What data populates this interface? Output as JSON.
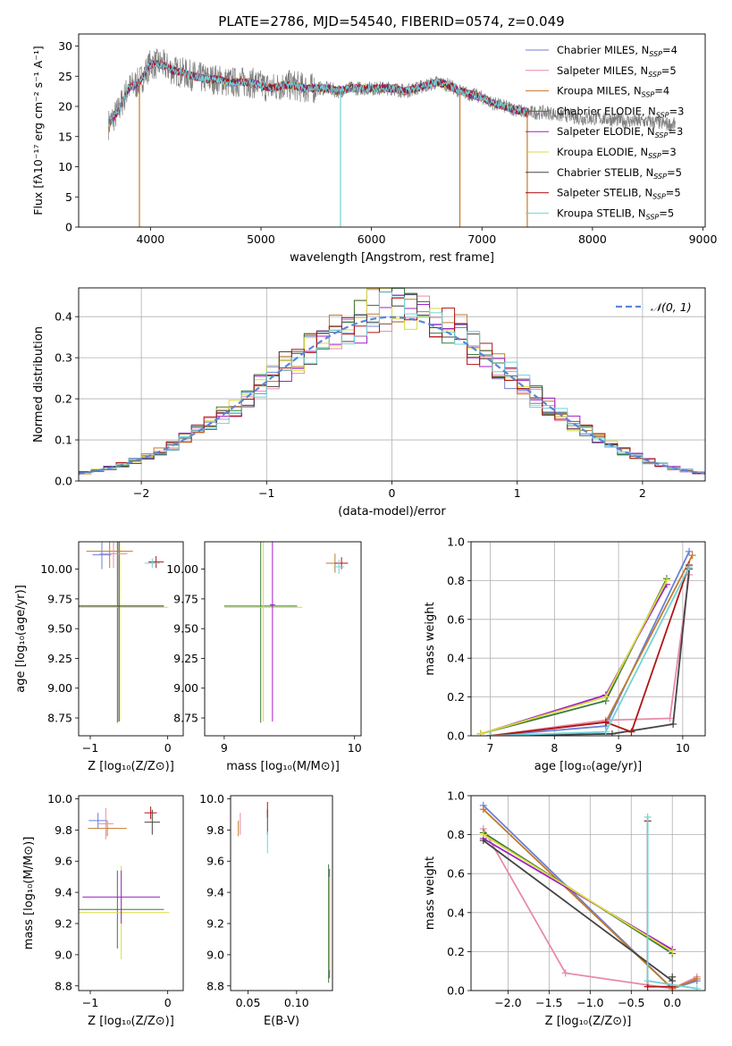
{
  "figure_title": "PLATE=2786, MJD=54540, FIBERID=0574, z=0.049",
  "colors": [
    "#6a7fd8",
    "#e88aa8",
    "#c27a2c",
    "#3d7a3d",
    "#a020c8",
    "#d9dc3c",
    "#444444",
    "#b01515",
    "#6fd3d8"
  ],
  "chart_data": [
    {
      "id": "spectrum",
      "type": "line",
      "title": "PLATE=2786, MJD=54540, FIBERID=0574, z=0.049",
      "xlabel": "wavelength [Angstrom, rest frame]",
      "ylabel": "Flux [f$_\\lambda$10$^{-17}$ erg cm$^{-2}$ s$^{-1}$ A$^{-1}$]",
      "ylabel_text": "Flux [fλ10⁻¹⁷ erg cm⁻² s⁻¹ A⁻¹]",
      "xlim": [
        3350,
        9020
      ],
      "ylim": [
        0,
        32
      ],
      "xticks": [
        "4000",
        "5000",
        "6000",
        "7000",
        "8000",
        "9000"
      ],
      "xtick_values": [
        4000,
        5000,
        6000,
        7000,
        8000,
        9000
      ],
      "yticks": [
        "0",
        "5",
        "10",
        "15",
        "20",
        "25",
        "30"
      ],
      "ytick_values": [
        0,
        5,
        10,
        15,
        20,
        25,
        30
      ],
      "data_x": [
        3620,
        3700,
        3800,
        3900,
        4000,
        4100,
        4200,
        4300,
        4400,
        4500,
        4600,
        4700,
        4800,
        4900,
        5000,
        5100,
        5200,
        5300,
        5400,
        5500,
        5600,
        5700,
        5800,
        5900,
        6000,
        6100,
        6200,
        6300,
        6400,
        6500,
        6600,
        6700,
        6800,
        6900,
        7000,
        7100,
        7200,
        7300,
        7400,
        7500,
        7600,
        7700,
        7800,
        7900,
        8000,
        8100,
        8200,
        8300,
        8400,
        8500,
        8600,
        8700,
        8750
      ],
      "data_y": [
        17,
        19,
        23,
        24,
        27,
        27,
        26,
        25.5,
        25,
        24.5,
        24.5,
        24,
        24,
        24,
        23.5,
        23,
        23.5,
        23.5,
        23,
        23,
        23,
        22.5,
        23,
        23,
        23,
        23,
        23,
        22.5,
        23,
        23.5,
        24,
        23.5,
        22.5,
        22,
        21.5,
        20.5,
        20,
        19.5,
        19,
        19,
        19,
        18.5,
        18.5,
        18,
        18,
        18,
        17.8,
        17.6,
        17.5,
        17.5,
        17.3,
        17,
        17
      ],
      "dips": [
        {
          "x": 3900,
          "y": 0,
          "series": 2
        },
        {
          "x": 5720,
          "y": 0,
          "series": 8
        },
        {
          "x": 6800,
          "y": 0,
          "series": 2
        },
        {
          "x": 7410,
          "y": 0,
          "series": 2
        }
      ],
      "legend": [
        {
          "label": "Chabrier MILES, N",
          "sub": "SSP",
          "suffix": "=4"
        },
        {
          "label": "Salpeter MILES, N",
          "sub": "SSP",
          "suffix": "=5"
        },
        {
          "label": "Kroupa MILES, N",
          "sub": "SSP",
          "suffix": "=4"
        },
        {
          "label": "Chabrier ELODIE, N",
          "sub": "SSP",
          "suffix": "=3"
        },
        {
          "label": "Salpeter ELODIE, N",
          "sub": "SSP",
          "suffix": "=3"
        },
        {
          "label": "Kroupa ELODIE, N",
          "sub": "SSP",
          "suffix": "=3"
        },
        {
          "label": "Chabrier STELIB, N",
          "sub": "SSP",
          "suffix": "=5"
        },
        {
          "label": "Salpeter STELIB, N",
          "sub": "SSP",
          "suffix": "=5"
        },
        {
          "label": "Kroupa STELIB, N",
          "sub": "SSP",
          "suffix": "=5"
        }
      ],
      "legend_placement": "upper-right"
    },
    {
      "id": "residuals",
      "type": "step-histogram",
      "xlabel": "(data-model)/error",
      "ylabel": "Normed distribution",
      "xlim": [
        -2.5,
        2.5
      ],
      "ylim": [
        0,
        0.47
      ],
      "xticks": [
        "−2",
        "−1",
        "0",
        "1",
        "2"
      ],
      "xtick_values": [
        -2,
        -1,
        0,
        1,
        2
      ],
      "yticks": [
        "0.0",
        "0.1",
        "0.2",
        "0.3",
        "0.4"
      ],
      "ytick_values": [
        0,
        0.1,
        0.2,
        0.3,
        0.4
      ],
      "grid": true,
      "bin_width": 0.1,
      "reference_curve": {
        "label": "𝒩(0, 1)",
        "style": "dashed",
        "color": "#5b86d8"
      },
      "legend_placement": "upper-right"
    },
    {
      "id": "age-vs-z",
      "type": "errorbar",
      "xlabel": "Z [log₁₀(Z/Z⊙)]",
      "ylabel": "age  [log₁₀(age/yr)]",
      "xlim": [
        -1.15,
        0.2
      ],
      "ylim": [
        8.6,
        10.23
      ],
      "xticks": [
        "−1",
        "0"
      ],
      "xtick_values": [
        -1,
        0
      ],
      "yticks": [
        "8.75",
        "9.00",
        "9.25",
        "9.50",
        "9.75",
        "10.00"
      ],
      "ytick_values": [
        8.75,
        9.0,
        9.25,
        9.5,
        9.75,
        10.0
      ],
      "points": [
        {
          "x": -0.65,
          "y": 9.69,
          "xerr": 0.6,
          "yerr": 0.98,
          "series": 3
        },
        {
          "x": -0.62,
          "y": 9.68,
          "xerr": 0.62,
          "yerr": 0.96,
          "series": 5
        },
        {
          "x": -0.63,
          "y": 9.69,
          "xerr": 0.58,
          "yerr": 0.97,
          "series": 6
        },
        {
          "x": -0.75,
          "y": 10.15,
          "xerr": 0.3,
          "yerr": 0.14,
          "series": 2
        },
        {
          "x": -0.7,
          "y": 10.13,
          "xerr": 0.18,
          "yerr": 0.12,
          "series": 1
        },
        {
          "x": -0.85,
          "y": 10.12,
          "xerr": 0.12,
          "yerr": 0.12,
          "series": 0
        },
        {
          "x": -0.15,
          "y": 10.06,
          "xerr": 0.1,
          "yerr": 0.05,
          "series": 7
        },
        {
          "x": -0.2,
          "y": 10.05,
          "xerr": 0.1,
          "yerr": 0.04,
          "series": 8
        }
      ]
    },
    {
      "id": "age-vs-mass",
      "type": "errorbar",
      "xlabel": "mass [log₁₀(M/M⊙)]",
      "ylabel": "",
      "xlim": [
        8.85,
        10.05
      ],
      "ylim": [
        8.6,
        10.23
      ],
      "xticks": [
        "9",
        "10"
      ],
      "xtick_values": [
        9,
        10
      ],
      "yticks": [
        "8.75",
        "9.00",
        "9.25",
        "9.50",
        "9.75",
        "10.00"
      ],
      "ytick_values": [
        8.75,
        9.0,
        9.25,
        9.5,
        9.75,
        10.0
      ],
      "points": [
        {
          "x": 9.28,
          "y": 9.69,
          "xerr": 0.28,
          "yerr": 0.98,
          "series": 3
        },
        {
          "x": 9.3,
          "y": 9.68,
          "xerr": 0.3,
          "yerr": 0.96,
          "series": 5
        },
        {
          "x": 9.37,
          "y": 9.7,
          "xerr": 0.02,
          "yerr": 0.98,
          "series": 4
        },
        {
          "x": 9.85,
          "y": 10.05,
          "xerr": 0.07,
          "yerr": 0.08,
          "series": 2
        },
        {
          "x": 9.9,
          "y": 10.05,
          "xerr": 0.05,
          "yerr": 0.05,
          "series": 7
        },
        {
          "x": 9.88,
          "y": 10.02,
          "xerr": 0.04,
          "yerr": 0.06,
          "series": 8
        }
      ]
    },
    {
      "id": "weight-vs-age",
      "type": "line",
      "xlabel": "age  [log₁₀(age/yr)]",
      "ylabel": "mass weight",
      "xlim": [
        6.7,
        10.35
      ],
      "ylim": [
        0,
        1.0
      ],
      "xticks": [
        "7",
        "8",
        "9",
        "10"
      ],
      "xtick_values": [
        7,
        8,
        9,
        10
      ],
      "yticks": [
        "0.0",
        "0.2",
        "0.4",
        "0.6",
        "0.8",
        "1.0"
      ],
      "ytick_values": [
        0,
        0.2,
        0.4,
        0.6,
        0.8,
        1.0
      ],
      "grid": true,
      "series": [
        {
          "series": 0,
          "x": [
            7.0,
            8.8,
            10.1
          ],
          "y": [
            0.0,
            0.05,
            0.95
          ]
        },
        {
          "series": 1,
          "x": [
            7.0,
            8.8,
            9.8,
            10.1
          ],
          "y": [
            0.0,
            0.08,
            0.09,
            0.83
          ]
        },
        {
          "series": 2,
          "x": [
            7.0,
            8.8,
            10.15
          ],
          "y": [
            0.0,
            0.07,
            0.93
          ]
        },
        {
          "series": 3,
          "x": [
            6.85,
            8.8,
            9.75
          ],
          "y": [
            0.01,
            0.18,
            0.81
          ]
        },
        {
          "series": 4,
          "x": [
            6.85,
            8.8,
            9.75
          ],
          "y": [
            0.01,
            0.21,
            0.78
          ]
        },
        {
          "series": 5,
          "x": [
            6.85,
            8.8,
            9.75
          ],
          "y": [
            0.01,
            0.2,
            0.8
          ]
        },
        {
          "series": 6,
          "x": [
            7.0,
            8.9,
            9.85,
            10.1
          ],
          "y": [
            0.0,
            0.01,
            0.06,
            0.86
          ]
        },
        {
          "series": 7,
          "x": [
            7.0,
            8.8,
            9.2,
            10.1
          ],
          "y": [
            0.0,
            0.07,
            0.02,
            0.88
          ]
        },
        {
          "series": 8,
          "x": [
            7.0,
            8.8,
            10.1
          ],
          "y": [
            0.0,
            0.02,
            0.87
          ]
        }
      ]
    },
    {
      "id": "mass-vs-z",
      "type": "errorbar",
      "xlabel": "Z [log₁₀(Z/Z⊙)]",
      "ylabel": "mass [log₁₀(M/M⊙)]",
      "xlim": [
        -1.15,
        0.2
      ],
      "ylim": [
        8.77,
        10.02
      ],
      "xticks": [
        "−1",
        "0"
      ],
      "xtick_values": [
        -1,
        0
      ],
      "yticks": [
        "8.8",
        "9.0",
        "9.2",
        "9.4",
        "9.6",
        "9.8",
        "10.0"
      ],
      "ytick_values": [
        8.8,
        9.0,
        9.2,
        9.4,
        9.6,
        9.8,
        10.0
      ],
      "points": [
        {
          "x": -0.65,
          "y": 9.29,
          "xerr": 0.6,
          "yerr": 0.25,
          "series": 3
        },
        {
          "x": -0.6,
          "y": 9.27,
          "xerr": 0.62,
          "yerr": 0.3,
          "series": 5
        },
        {
          "x": -0.6,
          "y": 9.37,
          "xerr": 0.5,
          "yerr": 0.17,
          "series": 4
        },
        {
          "x": -0.78,
          "y": 9.81,
          "xerr": 0.25,
          "yerr": 0.05,
          "series": 2
        },
        {
          "x": -0.9,
          "y": 9.86,
          "xerr": 0.12,
          "yerr": 0.05,
          "series": 0
        },
        {
          "x": -0.8,
          "y": 9.84,
          "xerr": 0.1,
          "yerr": 0.1,
          "series": 1
        },
        {
          "x": -0.2,
          "y": 9.85,
          "xerr": 0.1,
          "yerr": 0.08,
          "series": 6
        },
        {
          "x": -0.22,
          "y": 9.91,
          "xerr": 0.08,
          "yerr": 0.04,
          "series": 7
        }
      ]
    },
    {
      "id": "mass-vs-ebv",
      "type": "errorbar",
      "xlabel": "E(B-V)",
      "ylabel": "",
      "xlim": [
        0.032,
        0.137
      ],
      "ylim": [
        8.77,
        10.02
      ],
      "xticks": [
        "0.05",
        "0.10"
      ],
      "xtick_values": [
        0.05,
        0.1
      ],
      "yticks": [
        "8.8",
        "9.0",
        "9.2",
        "9.4",
        "9.6",
        "9.8",
        "10.0"
      ],
      "ytick_values": [
        8.8,
        9.0,
        9.2,
        9.4,
        9.6,
        9.8,
        10.0
      ],
      "points": [
        {
          "x": 0.04,
          "y": 9.81,
          "xerr": 0.0,
          "yerr": 0.05,
          "series": 2
        },
        {
          "x": 0.042,
          "y": 9.84,
          "xerr": 0.0,
          "yerr": 0.07,
          "series": 1
        },
        {
          "x": 0.07,
          "y": 9.85,
          "xerr": 0.0,
          "yerr": 0.08,
          "series": 6
        },
        {
          "x": 0.07,
          "y": 9.72,
          "xerr": 0.0,
          "yerr": 0.07,
          "series": 8
        },
        {
          "x": 0.07,
          "y": 9.93,
          "xerr": 0.0,
          "yerr": 0.05,
          "series": 7
        },
        {
          "x": 0.134,
          "y": 9.2,
          "xerr": 0.0,
          "yerr": 0.35,
          "series": 4
        },
        {
          "x": 0.134,
          "y": 9.2,
          "xerr": 0.0,
          "yerr": 0.3,
          "series": 5
        },
        {
          "x": 0.133,
          "y": 9.2,
          "xerr": 0.0,
          "yerr": 0.38,
          "series": 3
        }
      ]
    },
    {
      "id": "weight-vs-z",
      "type": "line",
      "xlabel": "Z [log₁₀(Z/Z⊙)]",
      "ylabel": "mass weight",
      "xlim": [
        -2.45,
        0.4
      ],
      "ylim": [
        0,
        1.0
      ],
      "xticks": [
        "−2.0",
        "−1.5",
        "−1.0",
        "−0.5",
        "0.0"
      ],
      "xtick_values": [
        -2.0,
        -1.5,
        -1.0,
        -0.5,
        0.0
      ],
      "yticks": [
        "0.0",
        "0.2",
        "0.4",
        "0.6",
        "0.8",
        "1.0"
      ],
      "ytick_values": [
        0,
        0.2,
        0.4,
        0.6,
        0.8,
        1.0
      ],
      "grid": true,
      "series": [
        {
          "series": 0,
          "x": [
            -2.3,
            0.0,
            0.3
          ],
          "y": [
            0.95,
            0.01,
            0.05
          ]
        },
        {
          "series": 1,
          "x": [
            -2.3,
            -1.3,
            0.0,
            0.3
          ],
          "y": [
            0.83,
            0.09,
            0.01,
            0.07
          ]
        },
        {
          "series": 2,
          "x": [
            -2.3,
            0.0,
            0.3
          ],
          "y": [
            0.93,
            0.01,
            0.06
          ]
        },
        {
          "series": 3,
          "x": [
            -2.3,
            0.0
          ],
          "y": [
            0.81,
            0.19
          ]
        },
        {
          "series": 4,
          "x": [
            -2.3,
            0.0
          ],
          "y": [
            0.78,
            0.21
          ]
        },
        {
          "series": 5,
          "x": [
            -2.3,
            0.0
          ],
          "y": [
            0.8,
            0.2
          ]
        },
        {
          "series": 6,
          "x": [
            -2.3,
            0.0,
            0.0
          ],
          "y": [
            0.77,
            0.05,
            0.07
          ]
        },
        {
          "series": 7,
          "x": [
            -0.3,
            -0.3,
            0.0
          ],
          "y": [
            0.87,
            0.02,
            0.02
          ]
        },
        {
          "series": 8,
          "x": [
            -0.3,
            -0.3,
            0.3
          ],
          "y": [
            0.89,
            0.05,
            0.01
          ]
        }
      ]
    }
  ]
}
